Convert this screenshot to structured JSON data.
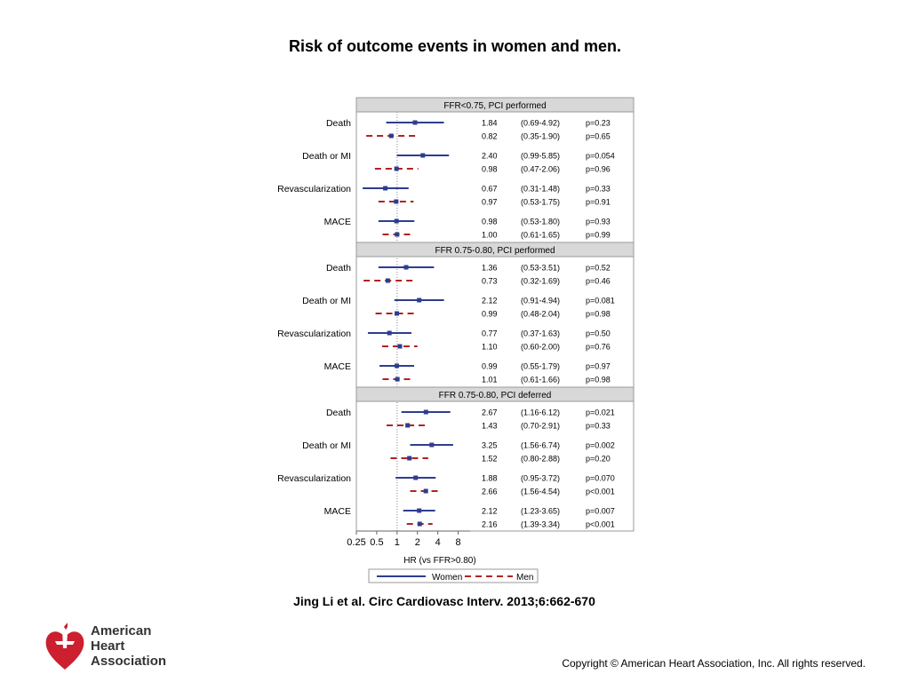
{
  "slide": {
    "title": "Risk of outcome events in women and men.",
    "citation": "Jing Li et al. Circ Cardiovasc Interv. 2013;6:662-670",
    "copyright": "Copyright © American Heart Association, Inc. All rights reserved."
  },
  "logo": {
    "line1": "American",
    "line2": "Heart",
    "line3": "Association"
  },
  "colors": {
    "women": "#2e3d8f",
    "men": "#b22222",
    "panel_header": "#d8d8d8"
  },
  "chart_data": {
    "type": "forest",
    "xlabel": "HR (vs FFR>0.80)",
    "x_scale": "log",
    "xlim": [
      0.25,
      12
    ],
    "ticks": [
      0.25,
      0.5,
      1,
      2,
      4,
      8
    ],
    "tick_labels": [
      "0.25",
      "0.5",
      "1",
      "2",
      "4",
      "8"
    ],
    "reference_line": 1,
    "legend": {
      "position": "bottom",
      "items": [
        "Women",
        "Men"
      ]
    },
    "panels": [
      {
        "header": "FFR<0.75, PCI performed",
        "outcomes": [
          {
            "label": "Death",
            "rows": [
              {
                "group": "Women",
                "hr": 1.84,
                "lo": 0.69,
                "hi": 4.92,
                "hr_text": "1.84",
                "ci_text": "(0.69-4.92)",
                "p_text": "p=0.23"
              },
              {
                "group": "Men",
                "hr": 0.82,
                "lo": 0.35,
                "hi": 1.9,
                "hr_text": "0.82",
                "ci_text": "(0.35-1.90)",
                "p_text": "p=0.65"
              }
            ]
          },
          {
            "label": "Death or MI",
            "rows": [
              {
                "group": "Women",
                "hr": 2.4,
                "lo": 0.99,
                "hi": 5.85,
                "hr_text": "2.40",
                "ci_text": "(0.99-5.85)",
                "p_text": "p=0.054"
              },
              {
                "group": "Men",
                "hr": 0.98,
                "lo": 0.47,
                "hi": 2.06,
                "hr_text": "0.98",
                "ci_text": "(0.47-2.06)",
                "p_text": "p=0.96"
              }
            ]
          },
          {
            "label": "Revascularization",
            "rows": [
              {
                "group": "Women",
                "hr": 0.67,
                "lo": 0.31,
                "hi": 1.48,
                "hr_text": "0.67",
                "ci_text": "(0.31-1.48)",
                "p_text": "p=0.33"
              },
              {
                "group": "Men",
                "hr": 0.97,
                "lo": 0.53,
                "hi": 1.75,
                "hr_text": "0.97",
                "ci_text": "(0.53-1.75)",
                "p_text": "p=0.91"
              }
            ]
          },
          {
            "label": "MACE",
            "rows": [
              {
                "group": "Women",
                "hr": 0.98,
                "lo": 0.53,
                "hi": 1.8,
                "hr_text": "0.98",
                "ci_text": "(0.53-1.80)",
                "p_text": "p=0.93"
              },
              {
                "group": "Men",
                "hr": 1.0,
                "lo": 0.61,
                "hi": 1.65,
                "hr_text": "1.00",
                "ci_text": "(0.61-1.65)",
                "p_text": "p=0.99"
              }
            ]
          }
        ]
      },
      {
        "header": "FFR 0.75-0.80, PCI performed",
        "outcomes": [
          {
            "label": "Death",
            "rows": [
              {
                "group": "Women",
                "hr": 1.36,
                "lo": 0.53,
                "hi": 3.51,
                "hr_text": "1.36",
                "ci_text": "(0.53-3.51)",
                "p_text": "p=0.52"
              },
              {
                "group": "Men",
                "hr": 0.73,
                "lo": 0.32,
                "hi": 1.69,
                "hr_text": "0.73",
                "ci_text": "(0.32-1.69)",
                "p_text": "p=0.46"
              }
            ]
          },
          {
            "label": "Death or MI",
            "rows": [
              {
                "group": "Women",
                "hr": 2.12,
                "lo": 0.91,
                "hi": 4.94,
                "hr_text": "2.12",
                "ci_text": "(0.91-4.94)",
                "p_text": "p=0.081"
              },
              {
                "group": "Men",
                "hr": 0.99,
                "lo": 0.48,
                "hi": 2.04,
                "hr_text": "0.99",
                "ci_text": "(0.48-2.04)",
                "p_text": "p=0.98"
              }
            ]
          },
          {
            "label": "Revascularization",
            "rows": [
              {
                "group": "Women",
                "hr": 0.77,
                "lo": 0.37,
                "hi": 1.63,
                "hr_text": "0.77",
                "ci_text": "(0.37-1.63)",
                "p_text": "p=0.50"
              },
              {
                "group": "Men",
                "hr": 1.1,
                "lo": 0.6,
                "hi": 2.0,
                "hr_text": "1.10",
                "ci_text": "(0.60-2.00)",
                "p_text": "p=0.76"
              }
            ]
          },
          {
            "label": "MACE",
            "rows": [
              {
                "group": "Women",
                "hr": 0.99,
                "lo": 0.55,
                "hi": 1.79,
                "hr_text": "0.99",
                "ci_text": "(0.55-1.79)",
                "p_text": "p=0.97"
              },
              {
                "group": "Men",
                "hr": 1.01,
                "lo": 0.61,
                "hi": 1.66,
                "hr_text": "1.01",
                "ci_text": "(0.61-1.66)",
                "p_text": "p=0.98"
              }
            ]
          }
        ]
      },
      {
        "header": "FFR 0.75-0.80, PCI deferred",
        "outcomes": [
          {
            "label": "Death",
            "rows": [
              {
                "group": "Women",
                "hr": 2.67,
                "lo": 1.16,
                "hi": 6.12,
                "hr_text": "2.67",
                "ci_text": "(1.16-6.12)",
                "p_text": "p=0.021"
              },
              {
                "group": "Men",
                "hr": 1.43,
                "lo": 0.7,
                "hi": 2.91,
                "hr_text": "1.43",
                "ci_text": "(0.70-2.91)",
                "p_text": "p=0.33"
              }
            ]
          },
          {
            "label": "Death or MI",
            "rows": [
              {
                "group": "Women",
                "hr": 3.25,
                "lo": 1.56,
                "hi": 6.74,
                "hr_text": "3.25",
                "ci_text": "(1.56-6.74)",
                "p_text": "p=0.002"
              },
              {
                "group": "Men",
                "hr": 1.52,
                "lo": 0.8,
                "hi": 2.88,
                "hr_text": "1.52",
                "ci_text": "(0.80-2.88)",
                "p_text": "p=0.20"
              }
            ]
          },
          {
            "label": "Revascularization",
            "rows": [
              {
                "group": "Women",
                "hr": 1.88,
                "lo": 0.95,
                "hi": 3.72,
                "hr_text": "1.88",
                "ci_text": "(0.95-3.72)",
                "p_text": "p=0.070"
              },
              {
                "group": "Men",
                "hr": 2.66,
                "lo": 1.56,
                "hi": 4.54,
                "hr_text": "2.66",
                "ci_text": "(1.56-4.54)",
                "p_text": "p<0.001"
              }
            ]
          },
          {
            "label": "MACE",
            "rows": [
              {
                "group": "Women",
                "hr": 2.12,
                "lo": 1.23,
                "hi": 3.65,
                "hr_text": "2.12",
                "ci_text": "(1.23-3.65)",
                "p_text": "p=0.007"
              },
              {
                "group": "Men",
                "hr": 2.16,
                "lo": 1.39,
                "hi": 3.34,
                "hr_text": "2.16",
                "ci_text": "(1.39-3.34)",
                "p_text": "p<0.001"
              }
            ]
          }
        ]
      }
    ]
  }
}
